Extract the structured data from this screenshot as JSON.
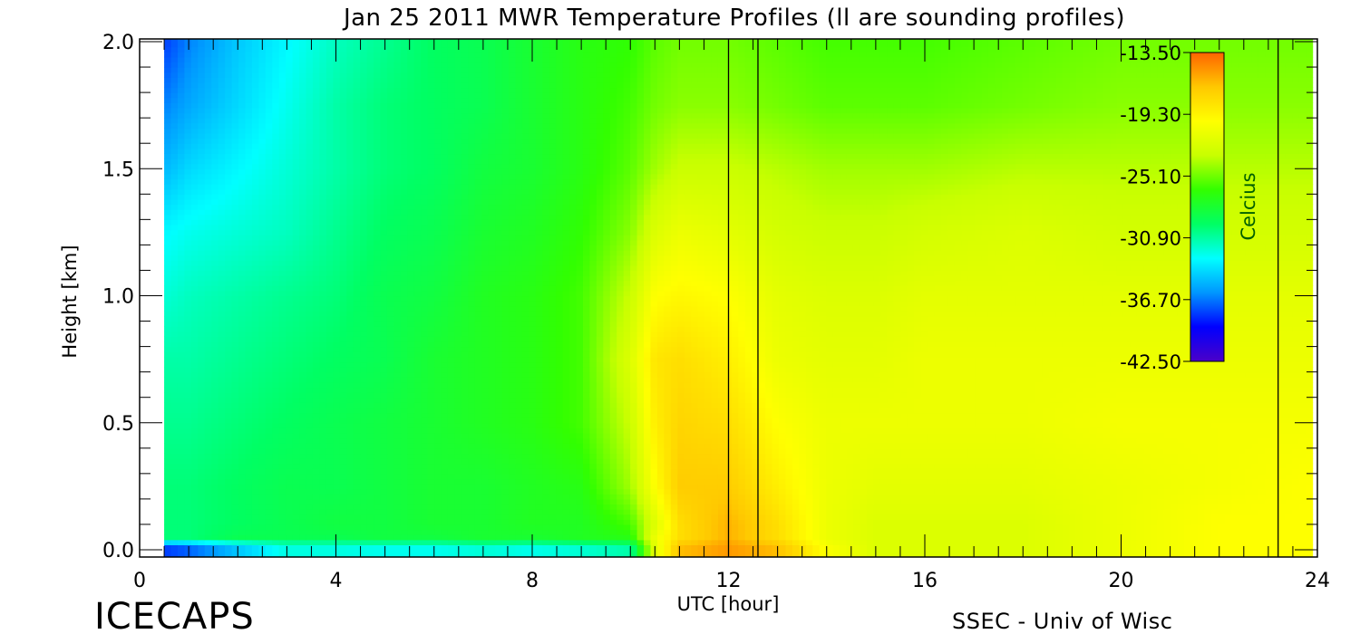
{
  "chart_data": {
    "type": "heatmap",
    "title": "Jan 25 2011 MWR Temperature Profiles (ll are sounding profiles)",
    "xlabel": "UTC [hour]",
    "ylabel": "Height [km]",
    "xlim": [
      0,
      24
    ],
    "ylim": [
      0,
      2
    ],
    "x_ticks": [
      "0",
      "4",
      "8",
      "12",
      "16",
      "20",
      "24"
    ],
    "y_ticks": [
      "0.0",
      "0.5",
      "1.0",
      "1.5",
      "2.0"
    ],
    "x_tick_values": [
      0,
      4,
      8,
      12,
      16,
      20,
      24
    ],
    "y_tick_values": [
      0,
      0.5,
      1.0,
      1.5,
      2.0
    ],
    "data_time_range": [
      0.5,
      23.9
    ],
    "sounding_times": [
      12.0,
      12.6,
      23.2
    ],
    "colorbar": {
      "label": "Celcius",
      "min": -42.5,
      "max": -13.5,
      "ticks": [
        "-13.50",
        "-19.30",
        "-25.10",
        "-30.90",
        "-36.70",
        "-42.50"
      ],
      "tick_values": [
        -13.5,
        -19.3,
        -25.1,
        -30.9,
        -36.7,
        -42.5
      ],
      "colormap": [
        "#4b00c8",
        "#0000ff",
        "#0096ff",
        "#00ffff",
        "#00ff64",
        "#32ff00",
        "#c8ff00",
        "#ffff00",
        "#ffc800",
        "#ff6400"
      ]
    },
    "temperature_grid": {
      "time_hours": [
        0.5,
        1,
        2,
        3,
        4,
        5,
        6,
        7,
        8,
        9,
        10,
        10.5,
        11,
        12,
        13,
        14,
        15,
        16,
        18,
        20,
        22,
        23.9
      ],
      "heights_km": [
        0,
        0.05,
        0.1,
        0.25,
        0.5,
        0.75,
        1.0,
        1.25,
        1.5,
        1.75,
        2.0
      ],
      "values_celsius": [
        [
          -40,
          -39,
          -36,
          -33,
          -33,
          -33.5,
          -33.5,
          -33,
          -33.5,
          -33,
          -32,
          -22,
          -16,
          -15,
          -16,
          -20,
          -22,
          -22,
          -22,
          -21,
          -20,
          -20
        ],
        [
          -30,
          -30,
          -29,
          -29,
          -29,
          -28.5,
          -28.5,
          -28,
          -28,
          -27.5,
          -27,
          -21,
          -18,
          -16,
          -18,
          -21,
          -22,
          -22,
          -22,
          -21,
          -20,
          -20
        ],
        [
          -30,
          -30,
          -29.5,
          -29,
          -28.5,
          -28.5,
          -28,
          -28,
          -27.5,
          -27.5,
          -26,
          -22,
          -18,
          -16,
          -18,
          -21,
          -22,
          -22,
          -22,
          -21,
          -20,
          -20
        ],
        [
          -30,
          -30,
          -29.5,
          -29,
          -29,
          -28.5,
          -28,
          -28,
          -27.5,
          -27,
          -24,
          -20,
          -17,
          -17,
          -19,
          -21,
          -21.5,
          -21.5,
          -21.5,
          -21,
          -20.5,
          -20
        ],
        [
          -30.5,
          -30.5,
          -30,
          -29.5,
          -29,
          -28.5,
          -28,
          -27.5,
          -27,
          -26,
          -23,
          -19,
          -17.5,
          -18,
          -20,
          -21,
          -21,
          -21,
          -21,
          -20.5,
          -20.5,
          -20.5
        ],
        [
          -31,
          -31,
          -30.5,
          -30,
          -29.5,
          -29,
          -28,
          -27.5,
          -27,
          -26,
          -22,
          -18.5,
          -18,
          -19,
          -21,
          -21.5,
          -21.5,
          -21,
          -21,
          -21,
          -21,
          -21
        ],
        [
          -32,
          -31.5,
          -31,
          -30.5,
          -30,
          -29,
          -28.5,
          -27.5,
          -27,
          -26,
          -23,
          -20,
          -19.5,
          -20,
          -21.5,
          -22,
          -22,
          -21.5,
          -21.5,
          -21.5,
          -21.5,
          -21.5
        ],
        [
          -33,
          -32.5,
          -32,
          -31.5,
          -30.5,
          -29.5,
          -29,
          -28,
          -27.5,
          -26.5,
          -24.5,
          -22,
          -21,
          -21.5,
          -22.5,
          -23,
          -23,
          -22.5,
          -22,
          -22.5,
          -22.5,
          -22.5
        ],
        [
          -35,
          -34,
          -33,
          -32,
          -31,
          -30,
          -29.5,
          -28.5,
          -28,
          -27,
          -25.5,
          -24,
          -23,
          -23,
          -23.5,
          -24,
          -24,
          -24,
          -23.5,
          -23.5,
          -23.5,
          -23.5
        ],
        [
          -36.5,
          -35.5,
          -34,
          -32.5,
          -31,
          -30,
          -29.5,
          -29,
          -28,
          -27,
          -26,
          -25,
          -24.5,
          -24.5,
          -25,
          -25.5,
          -25.5,
          -25.5,
          -25,
          -24.5,
          -24.5,
          -24.5
        ],
        [
          -38,
          -36.5,
          -34.5,
          -33,
          -31.5,
          -30.5,
          -29.5,
          -29,
          -28,
          -27,
          -26.5,
          -25.5,
          -25,
          -25,
          -25.5,
          -26,
          -26,
          -26,
          -25.5,
          -25,
          -25,
          -25
        ]
      ]
    }
  },
  "footer": {
    "brand": "ICECAPS",
    "credit": "SSEC - Univ of Wisc"
  }
}
